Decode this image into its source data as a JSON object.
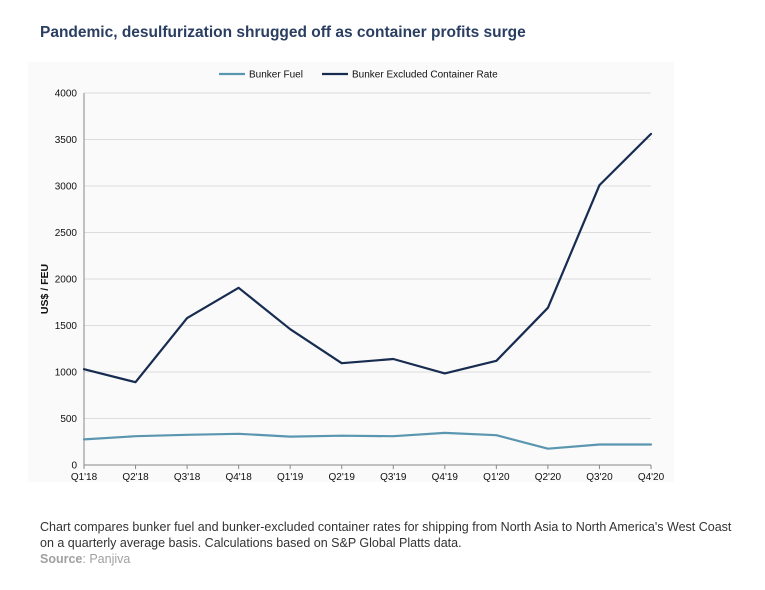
{
  "title": "Pandemic, desulfurization shrugged off as container profits surge",
  "caption": "Chart compares bunker fuel and bunker-excluded container rates for shipping from North Asia to North America's West Coast on a quarterly average basis. Calculations based on S&P Global Platts data.",
  "source": {
    "label": "Source",
    "value": ": Panjiva"
  },
  "colors": {
    "bunker_fuel": "#5b96b0",
    "container_rate": "#172c50",
    "grid": "#dcdcdc",
    "axis": "#888888",
    "plot_bg": "#fafafa"
  },
  "chart_data": {
    "type": "line",
    "categories": [
      "Q1'18",
      "Q2'18",
      "Q3'18",
      "Q4'18",
      "Q1'19",
      "Q2'19",
      "Q3'19",
      "Q4'19",
      "Q1'20",
      "Q2'20",
      "Q3'20",
      "Q4'20"
    ],
    "series": [
      {
        "name": "Bunker Fuel",
        "values": [
          275,
          310,
          325,
          335,
          305,
          315,
          310,
          345,
          320,
          175,
          220,
          220
        ]
      },
      {
        "name": "Bunker Excluded Container Rate",
        "values": [
          1030,
          890,
          1580,
          1905,
          1460,
          1095,
          1140,
          985,
          1120,
          1690,
          3010,
          3560
        ]
      }
    ],
    "xlabel": "",
    "ylabel": "US$ / FEU",
    "ylim": [
      0,
      4000
    ],
    "yticks": [
      0,
      500,
      1000,
      1500,
      2000,
      2500,
      3000,
      3500,
      4000
    ],
    "grid": true,
    "legend_position": "top"
  }
}
